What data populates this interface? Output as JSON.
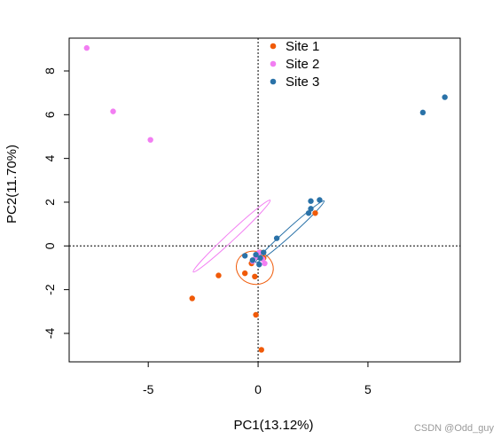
{
  "chart_data": {
    "type": "scatter",
    "xlabel": "PC1(13.12%)",
    "ylabel": "PC2(11.70%)",
    "xlim": [
      -8.6,
      9.2
    ],
    "ylim": [
      -5.3,
      9.5
    ],
    "xticks": [
      -5,
      0,
      5
    ],
    "yticks": [
      -4,
      -2,
      0,
      2,
      4,
      6,
      8
    ],
    "xtick_labels": [
      "-5",
      "0",
      "5"
    ],
    "ytick_labels": [
      "-4",
      "-2",
      "0",
      "2",
      "4",
      "6",
      "8"
    ],
    "reference_lines": {
      "x": 0,
      "y": 0,
      "style": "dotted"
    },
    "legend_position": "top-center",
    "series": [
      {
        "name": "Site 1",
        "color": "#f05a08",
        "points": [
          [
            -3.0,
            -2.4
          ],
          [
            -1.8,
            -1.35
          ],
          [
            -0.6,
            -1.25
          ],
          [
            -0.15,
            -1.4
          ],
          [
            -0.1,
            -3.15
          ],
          [
            0.15,
            -4.75
          ],
          [
            2.6,
            1.5
          ],
          [
            0.25,
            -0.55
          ],
          [
            -0.3,
            -0.8
          ],
          [
            0.1,
            -0.3
          ]
        ],
        "ellipse": {
          "center": [
            -0.15,
            -1.0
          ],
          "rx": 0.85,
          "ry": 0.75,
          "angle": -15
        }
      },
      {
        "name": "Site 2",
        "color": "#f27ef2",
        "points": [
          [
            -7.8,
            9.05
          ],
          [
            -6.6,
            6.15
          ],
          [
            -4.9,
            4.85
          ],
          [
            0.2,
            -0.6
          ],
          [
            -0.1,
            -0.5
          ],
          [
            0.3,
            -0.8
          ],
          [
            0.05,
            -0.3
          ],
          [
            -0.25,
            -0.7
          ]
        ],
        "ellipse": {
          "center": [
            -1.2,
            0.45
          ],
          "rx": 2.4,
          "ry": 0.18,
          "angle": 43
        }
      },
      {
        "name": "Site 3",
        "color": "#2a72a8",
        "points": [
          [
            7.5,
            6.1
          ],
          [
            8.5,
            6.8
          ],
          [
            2.8,
            2.1
          ],
          [
            2.4,
            2.05
          ],
          [
            2.4,
            1.7
          ],
          [
            2.3,
            1.5
          ],
          [
            0.85,
            0.35
          ],
          [
            -0.6,
            -0.45
          ],
          [
            -0.1,
            -0.4
          ],
          [
            0.1,
            -0.55
          ],
          [
            -0.25,
            -0.65
          ],
          [
            0.05,
            -0.85
          ],
          [
            0.25,
            -0.3
          ]
        ],
        "ellipse": {
          "center": [
            1.45,
            0.65
          ],
          "rx": 2.1,
          "ry": 0.16,
          "angle": 42
        }
      }
    ]
  },
  "watermark": "CSDN @Odd_guy"
}
